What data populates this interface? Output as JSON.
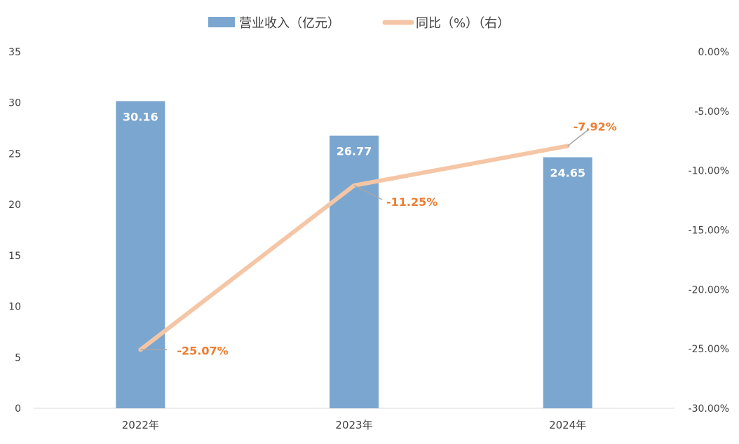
{
  "chart_data": {
    "type": "bar",
    "categories": [
      "2022年",
      "2023年",
      "2024年"
    ],
    "series": [
      {
        "name": "营业收入（亿元）",
        "type": "bar",
        "axis": "left",
        "values": [
          30.16,
          26.77,
          24.65
        ],
        "labels": [
          "30.16",
          "26.77",
          "24.65"
        ]
      },
      {
        "name": "同比（%）（右）",
        "type": "line",
        "axis": "right",
        "values": [
          -25.07,
          -11.25,
          -7.92
        ],
        "labels": [
          "-25.07%",
          "-11.25%",
          "-7.92%"
        ]
      }
    ],
    "y_left": {
      "min": 0,
      "max": 35,
      "ticks": [
        "0",
        "5",
        "10",
        "15",
        "20",
        "25",
        "30",
        "35"
      ]
    },
    "y_right": {
      "min": -30,
      "max": 0,
      "ticks": [
        "-30.00%",
        "-25.00%",
        "-20.00%",
        "-15.00%",
        "-10.00%",
        "-5.00%",
        "0.00%"
      ]
    },
    "legend_position": "top",
    "grid": false,
    "colors": {
      "bar": "#7ba6d0",
      "line": "#f5c6a5",
      "line_label": "#ed7d31",
      "bar_label": "#ffffff",
      "axis_text": "#404040",
      "axis_line": "#d9d9d9",
      "leader": "#a6a6a6"
    }
  }
}
